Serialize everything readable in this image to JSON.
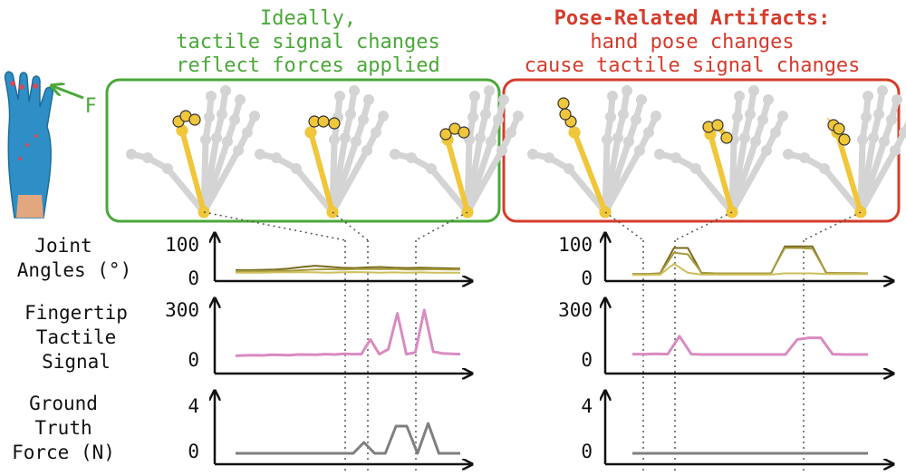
{
  "header_left": {
    "line1": "Ideally,",
    "line2": "tactile signal changes",
    "line3": "reflect forces applied",
    "color": "#4aa838"
  },
  "header_right": {
    "line1": "Pose-Related Artifacts:",
    "line2": "hand pose changes",
    "line3": "cause tactile signal changes",
    "color": "#d43c2c"
  },
  "force_label": "F",
  "row_labels": {
    "joint": [
      "Joint",
      "Angles (°)"
    ],
    "tactile": [
      "Fingertip",
      "Tactile",
      "Signal"
    ],
    "force": [
      "Ground",
      "Truth",
      "Force (N)"
    ]
  },
  "ticks": {
    "joint": [
      "100",
      "0"
    ],
    "tactile": [
      "300",
      "0"
    ],
    "force": [
      "4",
      "0"
    ]
  },
  "colors": {
    "green_box": "#4aa838",
    "red_box": "#d43c2c",
    "joint_lines": [
      "#7a6a1e",
      "#a59a3c",
      "#cdbf5c"
    ],
    "tactile_line": "#d98bc0",
    "force_line": "#7f7f7f",
    "finger_highlight": "#f0c63a",
    "hand_gray": "#d4d4d4",
    "glove": "#2e8fc6"
  },
  "chart_data": [
    {
      "type": "line",
      "name": "joint-left",
      "ylim": [
        0,
        100
      ],
      "yticks": [
        0,
        100
      ],
      "series": [
        {
          "values": [
            20,
            20,
            21,
            22,
            25,
            30,
            34,
            31,
            28,
            27,
            29,
            30,
            28,
            27,
            28,
            27,
            26,
            25
          ]
        },
        {
          "values": [
            17,
            17,
            17,
            18,
            18,
            20,
            22,
            23,
            22,
            23,
            24,
            23,
            24,
            22,
            22,
            23,
            22,
            22
          ]
        },
        {
          "values": [
            12,
            12,
            12,
            13,
            13,
            14,
            13,
            12,
            13,
            14,
            13,
            12,
            13,
            12,
            13,
            12,
            12,
            12
          ]
        }
      ]
    },
    {
      "type": "line",
      "name": "tactile-left",
      "ylim": [
        0,
        300
      ],
      "yticks": [
        0,
        300
      ],
      "series": [
        {
          "values": [
            20,
            22,
            24,
            22,
            26,
            25,
            24,
            28,
            27,
            26,
            30,
            28,
            32,
            30,
            30,
            120,
            30,
            60,
            280,
            30,
            40,
            300,
            45,
            35,
            32,
            30
          ]
        }
      ]
    },
    {
      "type": "line",
      "name": "force-left",
      "ylim": [
        0,
        4
      ],
      "yticks": [
        0,
        4
      ],
      "series": [
        {
          "values": [
            0,
            0,
            0,
            0,
            0,
            0,
            0,
            0,
            0,
            0,
            0,
            0,
            1.2,
            0,
            0,
            3.0,
            3.0,
            0,
            3.3,
            0,
            0,
            0
          ]
        }
      ]
    },
    {
      "type": "line",
      "name": "joint-right",
      "ylim": [
        0,
        100
      ],
      "yticks": [
        0,
        100
      ],
      "series": [
        {
          "values": [
            8,
            8,
            10,
            90,
            90,
            10,
            9,
            9,
            9,
            9,
            9,
            95,
            95,
            95,
            10,
            10,
            10,
            10
          ]
        },
        {
          "values": [
            8,
            8,
            9,
            75,
            70,
            12,
            10,
            10,
            10,
            10,
            10,
            90,
            90,
            88,
            12,
            11,
            11,
            10
          ]
        },
        {
          "values": [
            5,
            5,
            6,
            40,
            12,
            6,
            6,
            6,
            6,
            6,
            6,
            10,
            10,
            10,
            8,
            8,
            8,
            8
          ]
        }
      ]
    },
    {
      "type": "line",
      "name": "tactile-right",
      "ylim": [
        0,
        300
      ],
      "yticks": [
        0,
        300
      ],
      "series": [
        {
          "values": [
            30,
            30,
            32,
            30,
            140,
            30,
            28,
            28,
            28,
            28,
            28,
            28,
            28,
            28,
            120,
            130,
            130,
            30,
            28,
            28,
            28
          ]
        }
      ]
    },
    {
      "type": "line",
      "name": "force-right",
      "ylim": [
        0,
        4
      ],
      "yticks": [
        0,
        4
      ],
      "series": [
        {
          "values": [
            0,
            0,
            0,
            0,
            0,
            0,
            0,
            0,
            0,
            0
          ]
        }
      ]
    }
  ]
}
